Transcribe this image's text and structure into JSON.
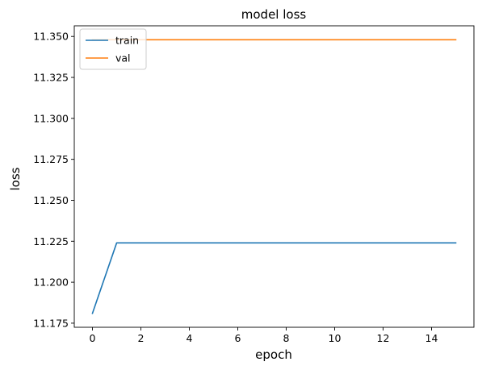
{
  "chart_data": {
    "type": "line",
    "title": "model loss",
    "xlabel": "epoch",
    "ylabel": "loss",
    "x": [
      0,
      1,
      2,
      3,
      4,
      5,
      6,
      7,
      8,
      9,
      10,
      11,
      12,
      13,
      14,
      15
    ],
    "series": [
      {
        "name": "train",
        "color": "#1f77b4",
        "values": [
          11.181,
          11.224,
          11.224,
          11.224,
          11.224,
          11.224,
          11.224,
          11.224,
          11.224,
          11.224,
          11.224,
          11.224,
          11.224,
          11.224,
          11.224,
          11.224
        ]
      },
      {
        "name": "val",
        "color": "#ff7f0e",
        "values": [
          11.348,
          11.348,
          11.348,
          11.348,
          11.348,
          11.348,
          11.348,
          11.348,
          11.348,
          11.348,
          11.348,
          11.348,
          11.348,
          11.348,
          11.348,
          11.348
        ]
      }
    ],
    "xlim": [
      -0.75,
      15.75
    ],
    "ylim": [
      11.1725,
      11.3565
    ],
    "xticks": [
      0,
      2,
      4,
      6,
      8,
      10,
      12,
      14
    ],
    "yticks": [
      11.175,
      11.2,
      11.225,
      11.25,
      11.275,
      11.3,
      11.325,
      11.35
    ],
    "ytick_labels": [
      "11.175",
      "11.200",
      "11.225",
      "11.250",
      "11.275",
      "11.300",
      "11.325",
      "11.350"
    ],
    "grid": false,
    "legend_position": "top-left"
  }
}
